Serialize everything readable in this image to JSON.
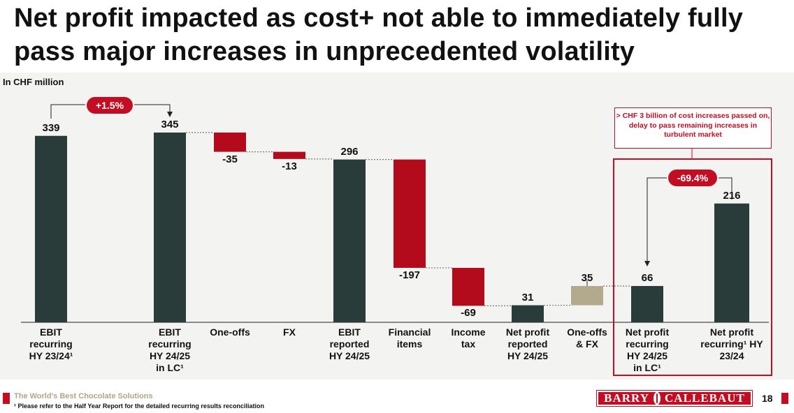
{
  "slide": {
    "title": "Net profit impacted as cost+ not able to immediately fully pass major increases in unprecedented volatility",
    "unit_label": "In CHF million",
    "tagline": "The World's Best Chocolate Solutions",
    "footnote": "¹ Please refer to the Half Year Report for the detailed recurring results reconciliation",
    "logo_left": "BARRY",
    "logo_right": "CALLEBAUT",
    "page_number": "18"
  },
  "colors": {
    "dark": "#2a3c3a",
    "red": "#b30b1c",
    "tan": "#b3a98c",
    "accent": "#c30d23"
  },
  "chart_data": {
    "type": "waterfall",
    "title": "",
    "ylabel": "In CHF million",
    "categories": [
      "EBIT recurring HY 23/24¹",
      "EBIT recurring HY 24/25 in LC¹",
      "One-offs",
      "FX",
      "EBIT reported HY 24/25",
      "Financial items",
      "Income tax",
      "Net profit reported HY 24/25",
      "One-offs & FX",
      "Net profit recurring HY 24/25 in LC¹",
      "Net profit recurring¹ HY 23/24"
    ],
    "label_lines": [
      [
        "EBIT",
        "recurring",
        "HY 23/24¹"
      ],
      [
        "EBIT",
        "recurring",
        "HY 24/25",
        "in LC¹"
      ],
      [
        "One-offs"
      ],
      [
        "FX"
      ],
      [
        "EBIT",
        "reported",
        "HY 24/25"
      ],
      [
        "Financial",
        "items"
      ],
      [
        "Income",
        "tax"
      ],
      [
        "Net profit",
        "reported",
        "HY 24/25"
      ],
      [
        "One-offs",
        "& FX"
      ],
      [
        "Net profit",
        "recurring",
        "HY 24/25",
        "in LC¹"
      ],
      [
        "Net profit",
        "recurring¹ HY",
        "23/24"
      ]
    ],
    "bars": [
      {
        "kind": "total",
        "value": 339,
        "label": "339",
        "color": "dark"
      },
      {
        "kind": "total",
        "value": 345,
        "label": "345",
        "color": "dark"
      },
      {
        "kind": "delta",
        "value": -35,
        "label": "-35",
        "color": "red"
      },
      {
        "kind": "delta",
        "value": -13,
        "label": "-13",
        "color": "red"
      },
      {
        "kind": "total",
        "value": 296,
        "label": "296",
        "color": "dark"
      },
      {
        "kind": "delta",
        "value": -197,
        "label": "-197",
        "color": "red"
      },
      {
        "kind": "delta",
        "value": -69,
        "label": "-69",
        "color": "red"
      },
      {
        "kind": "total",
        "value": 31,
        "label": "31",
        "color": "dark"
      },
      {
        "kind": "delta",
        "value": 35,
        "label": "35",
        "color": "tan"
      },
      {
        "kind": "total",
        "value": 66,
        "label": "66",
        "color": "dark"
      },
      {
        "kind": "total",
        "value": 216,
        "label": "216",
        "color": "dark"
      }
    ],
    "ylim": [
      0,
      345
    ],
    "annotations": {
      "ebit_change": "+1.5%",
      "net_profit_change": "-69.4%",
      "callout": "> CHF 3 billion of cost increases passed on, delay to pass remaining increases in turbulent market"
    }
  }
}
